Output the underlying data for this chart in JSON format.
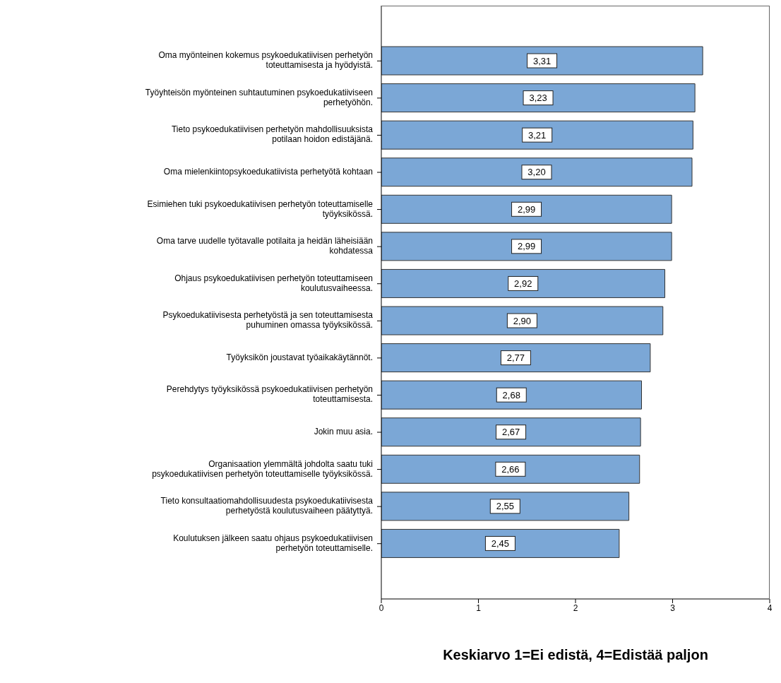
{
  "chart_data": {
    "type": "bar",
    "orientation": "horizontal",
    "xlabel": "Keskiarvo 1=Ei edistä, 4=Edistää paljon",
    "categories": [
      "Oma myönteinen kokemus psykoedukatiivisen perhetyön toteuttamisesta ja hyödyistä.",
      "Työyhteisön myönteinen suhtautuminen psykoedukatiiviseen perhetyöhön.",
      "Tieto psykoedukatiivisen perhetyön mahdollisuuksista potilaan hoidon edistäjänä.",
      "Oma mielenkiintopsykoedukatiivista perhetyötä kohtaan",
      "Esimiehen tuki psykoedukatiivisen perhetyön toteuttamiselle työyksikössä.",
      "Oma tarve uudelle työtavalle potilaita ja heidän läheisiään kohdatessa",
      "Ohjaus psykoedukatiivisen perhetyön toteuttamiseen koulutusvaiheessa.",
      "Psykoedukatiivisesta perhetyöstä ja sen toteuttamisesta puhuminen omassa työyksikössä.",
      "Työyksikön joustavat työaikakäytännöt.",
      "Perehdytys työyksikössä psykoedukatiivisen perhetyön toteuttamisesta.",
      "Jokin muu asia.",
      "Organisaation ylemmältä johdolta saatu tuki psykoedukatiivisen perhetyön toteuttamiselle työyksikössä.",
      "Tieto konsultaatiomahdollisuudesta psykoedukatiivisesta perhetyöstä koulutusvaiheen päätyttyä.",
      "Koulutuksen jälkeen saatu ohjaus psykoedukatiivisen perhetyön toteuttamiselle."
    ],
    "values": [
      3.31,
      3.23,
      3.21,
      3.2,
      2.99,
      2.99,
      2.92,
      2.9,
      2.77,
      2.68,
      2.67,
      2.66,
      2.55,
      2.45
    ],
    "value_labels": [
      "3,31",
      "3,23",
      "3,21",
      "3,20",
      "2,99",
      "2,99",
      "2,92",
      "2,90",
      "2,77",
      "2,68",
      "2,67",
      "2,66",
      "2,55",
      "2,45"
    ],
    "color": "#7ba7d6",
    "xlim": [
      0,
      4
    ],
    "xticks": [
      0,
      1,
      2,
      3,
      4
    ],
    "grid": false,
    "legend": false
  }
}
